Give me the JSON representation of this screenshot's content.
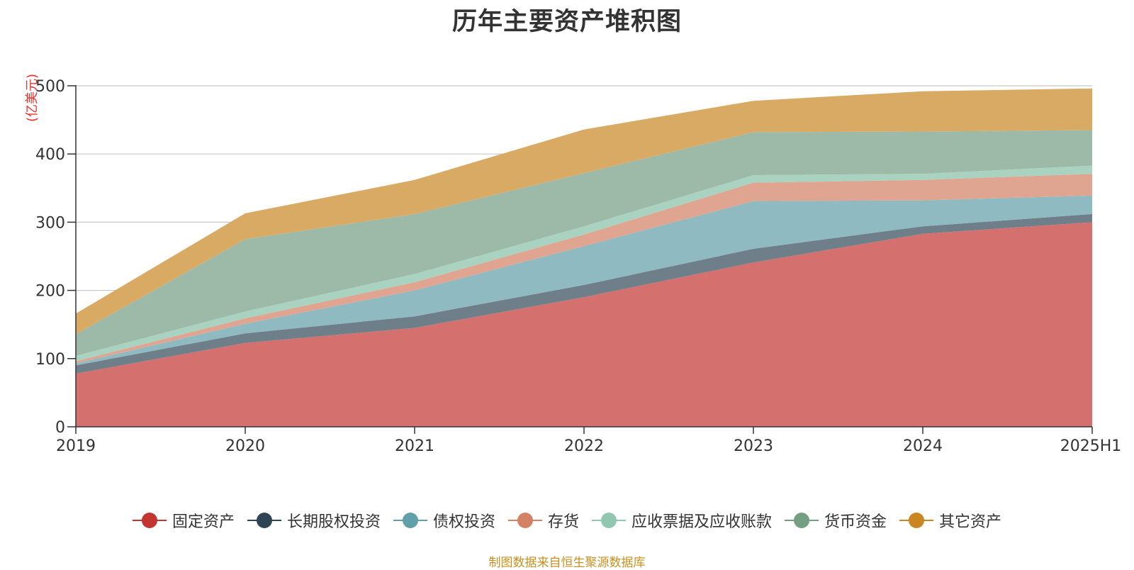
{
  "chart_data": {
    "type": "area",
    "stacked": true,
    "title": "历年主要资产堆积图",
    "unit_label": "(亿美元)",
    "categories": [
      "2019",
      "2020",
      "2021",
      "2022",
      "2023",
      "2024",
      "2025H1"
    ],
    "ylim": [
      0,
      500
    ],
    "yticks": [
      0,
      100,
      200,
      300,
      400,
      500
    ],
    "grid": true,
    "legend_position": "bottom",
    "series": [
      {
        "name": "固定资产",
        "color": "#c23531",
        "fill": "#d4706e",
        "values": [
          78,
          123,
          145,
          190,
          241,
          283,
          300
        ]
      },
      {
        "name": "长期股权投资",
        "color": "#2f4554",
        "fill": "#6f7f8a",
        "values": [
          12,
          14,
          17,
          18,
          20,
          11,
          12
        ]
      },
      {
        "name": "债权投资",
        "color": "#61a0a8",
        "fill": "#8fbac1",
        "values": [
          3,
          14,
          38,
          57,
          70,
          38,
          27
        ]
      },
      {
        "name": "存货",
        "color": "#d48265",
        "fill": "#dfa591",
        "values": [
          3,
          8,
          12,
          17,
          27,
          30,
          32
        ]
      },
      {
        "name": "应收票据及应收账款",
        "color": "#91c7ae",
        "fill": "#a9d3c0",
        "values": [
          8,
          10,
          12,
          12,
          11,
          9,
          12
        ]
      },
      {
        "name": "货币资金",
        "color": "#749f83",
        "fill": "#9db9a7",
        "values": [
          32,
          106,
          88,
          78,
          63,
          62,
          52
        ]
      },
      {
        "name": "其它资产",
        "color": "#ca8622",
        "fill": "#d9aa64",
        "values": [
          30,
          38,
          50,
          64,
          46,
          59,
          61
        ]
      }
    ]
  },
  "source_note": "制图数据来自恒生聚源数据库"
}
